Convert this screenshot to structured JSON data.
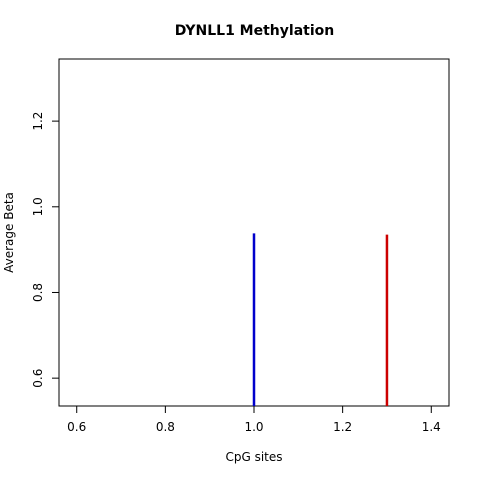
{
  "chart_data": {
    "type": "line",
    "title": "DYNLL1 Methylation",
    "xlabel": "CpG sites",
    "ylabel": "Average Beta",
    "xlim": [
      0.56,
      1.44
    ],
    "ylim": [
      0.535,
      1.345
    ],
    "xticks": [
      0.6,
      0.8,
      1.0,
      1.2,
      1.4
    ],
    "xtick_labels": [
      "0.6",
      "0.8",
      "1.0",
      "1.2",
      "1.4"
    ],
    "yticks": [
      0.6,
      0.8,
      1.0,
      1.2
    ],
    "ytick_labels": [
      "0.6",
      "0.8",
      "1.0",
      "1.2"
    ],
    "grid": false,
    "legend": "none",
    "series": [
      {
        "x": 1.0,
        "y": 0.938,
        "color": "#0000cc"
      },
      {
        "x": 1.3,
        "y": 0.935,
        "color": "#cc0000"
      }
    ]
  }
}
